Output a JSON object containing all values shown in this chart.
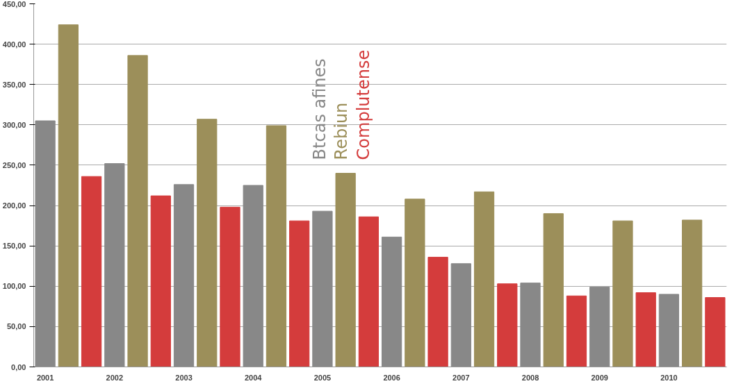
{
  "chart_data": {
    "type": "bar",
    "stacked": true,
    "categories": [
      "2001",
      null,
      null,
      "2002",
      null,
      null,
      "2003",
      null,
      null,
      "2004",
      null,
      null,
      "2005",
      null,
      null,
      "2006",
      null,
      null,
      "2007",
      null,
      null,
      "2008",
      null,
      null,
      "2009",
      null,
      null,
      "2010",
      null,
      null
    ],
    "series": [
      {
        "name": "Btcas afines",
        "color": "#888888",
        "values": [
          305,
          null,
          null,
          252,
          null,
          null,
          226,
          null,
          null,
          225,
          null,
          null,
          193,
          null,
          null,
          161,
          null,
          null,
          128,
          null,
          null,
          104,
          null,
          null,
          99,
          null,
          null,
          90,
          null,
          null
        ]
      },
      {
        "name": "Rebiun",
        "color": "#9c8f5a",
        "values": [
          null,
          424,
          null,
          null,
          386,
          null,
          null,
          307,
          null,
          null,
          299,
          null,
          null,
          240,
          null,
          null,
          208,
          null,
          null,
          217,
          null,
          null,
          190,
          null,
          null,
          181,
          null,
          null,
          182,
          null
        ]
      },
      {
        "name": "Complutense",
        "color": "#d43c3c",
        "values": [
          null,
          null,
          236,
          null,
          null,
          212,
          null,
          null,
          198,
          null,
          null,
          181,
          null,
          null,
          186,
          null,
          null,
          136,
          null,
          null,
          103,
          null,
          null,
          88,
          null,
          null,
          92,
          null,
          null,
          86
        ]
      }
    ],
    "ylim": [
      0,
      450
    ],
    "yticks": [
      {
        "value": 0,
        "label": "0,00"
      },
      {
        "value": 50,
        "label": "50,00"
      },
      {
        "value": 100,
        "label": "100,00"
      },
      {
        "value": 150,
        "label": "150,00"
      },
      {
        "value": 200,
        "label": "200,00"
      },
      {
        "value": 250,
        "label": "250,00"
      },
      {
        "value": 300,
        "label": "300,00"
      },
      {
        "value": 350,
        "label": "350,00"
      },
      {
        "value": 400,
        "label": "400,00"
      },
      {
        "value": 450,
        "label": "450,00"
      }
    ],
    "grid": "y",
    "legend": "top"
  }
}
